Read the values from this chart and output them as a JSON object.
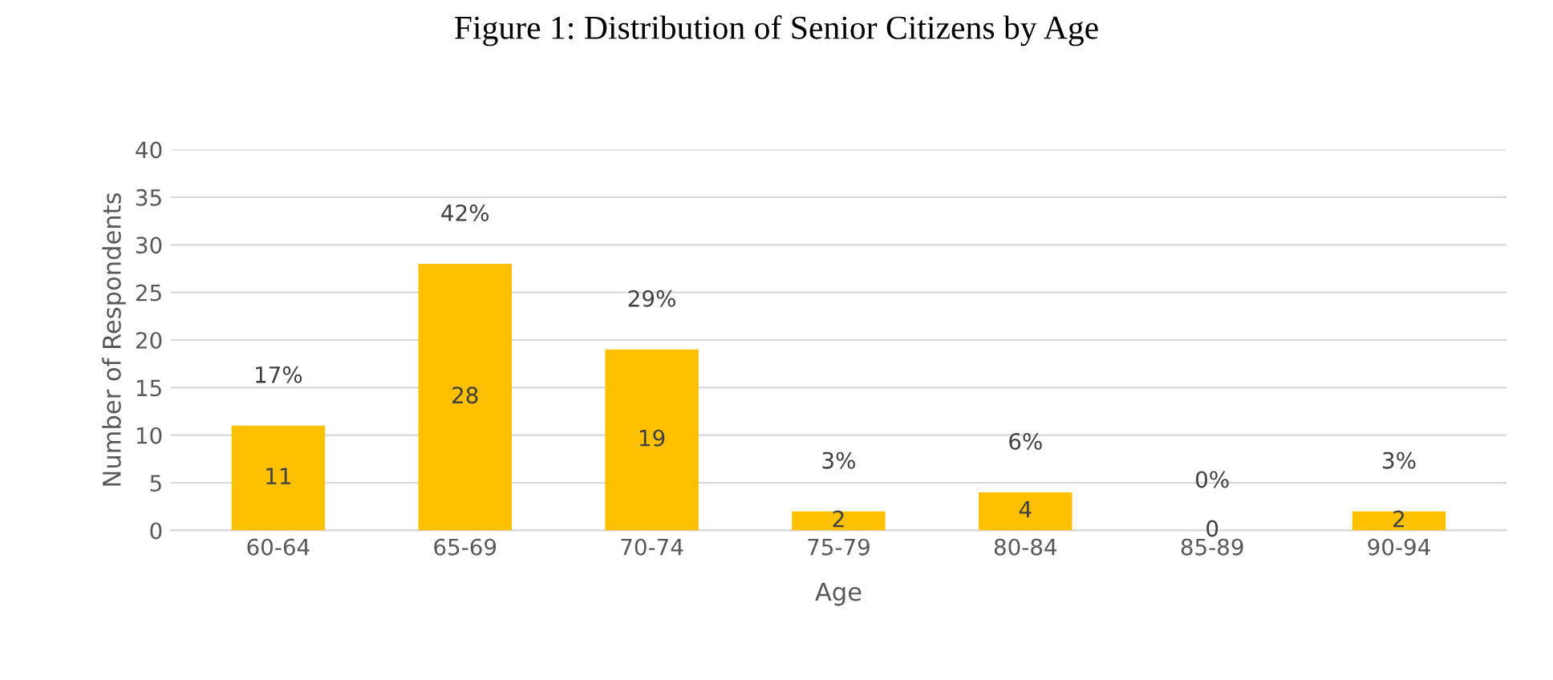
{
  "chart_data": {
    "type": "bar",
    "title": "Figure 1: Distribution of Senior Citizens by Age",
    "xlabel": "Age",
    "ylabel": "Number of Respondents",
    "categories": [
      "60-64",
      "65-69",
      "70-74",
      "75-79",
      "80-84",
      "85-89",
      "90-94"
    ],
    "values": [
      11,
      28,
      19,
      2,
      4,
      0,
      2
    ],
    "color": "#ffc000",
    "data_labels": true,
    "annotations": [
      {
        "text": "17%",
        "x": "60-64",
        "y": 11
      },
      {
        "text": "42%",
        "x": "65-69",
        "y": 28
      },
      {
        "text": "29%",
        "x": "70-74",
        "y": 19
      },
      {
        "text": "3%",
        "x": "75-79",
        "y": 2
      },
      {
        "text": "6%",
        "x": "80-84",
        "y": 4
      },
      {
        "text": "0%",
        "x": "85-89",
        "y": 0
      },
      {
        "text": "3%",
        "x": "90-94",
        "y": 2
      }
    ],
    "ylim": [
      0,
      40
    ],
    "yticks": [
      0,
      5,
      10,
      15,
      20,
      25,
      30,
      35,
      40
    ],
    "grid": "y",
    "legend": false
  }
}
